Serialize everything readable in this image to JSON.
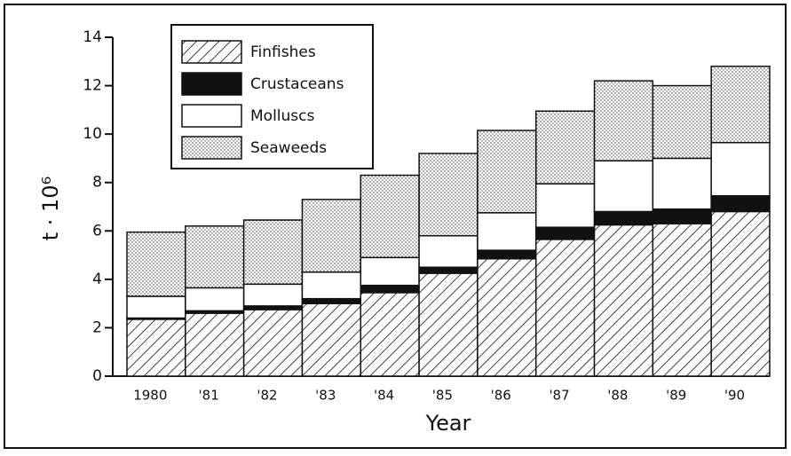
{
  "chart_data": {
    "type": "stacked_bar",
    "categories": [
      "1980",
      "'81",
      "'82",
      "'83",
      "'84",
      "'85",
      "'86",
      "'87",
      "'88",
      "'89",
      "'90"
    ],
    "x_label": "Year",
    "y_label": "t · 10⁶",
    "ylim": [
      0,
      14
    ],
    "yticks": [
      0,
      2,
      4,
      6,
      8,
      10,
      12,
      14
    ],
    "legend": "upper left",
    "series": [
      {
        "name": "Finfishes",
        "pattern": "hatch",
        "values": [
          2.35,
          2.6,
          2.75,
          3.0,
          3.45,
          4.25,
          4.85,
          5.65,
          6.25,
          6.3,
          6.8
        ]
      },
      {
        "name": "Crustaceans",
        "pattern": "solid",
        "values": [
          0.05,
          0.1,
          0.15,
          0.2,
          0.3,
          0.25,
          0.35,
          0.5,
          0.55,
          0.6,
          0.65
        ]
      },
      {
        "name": "Molluscs",
        "pattern": "blank",
        "values": [
          0.9,
          0.95,
          0.9,
          1.1,
          1.15,
          1.3,
          1.55,
          1.8,
          2.1,
          2.1,
          2.2
        ]
      },
      {
        "name": "Seaweeds",
        "pattern": "dots",
        "values": [
          2.65,
          2.55,
          2.65,
          3.0,
          3.4,
          3.4,
          3.4,
          3.0,
          3.3,
          3.0,
          3.15
        ]
      }
    ]
  }
}
